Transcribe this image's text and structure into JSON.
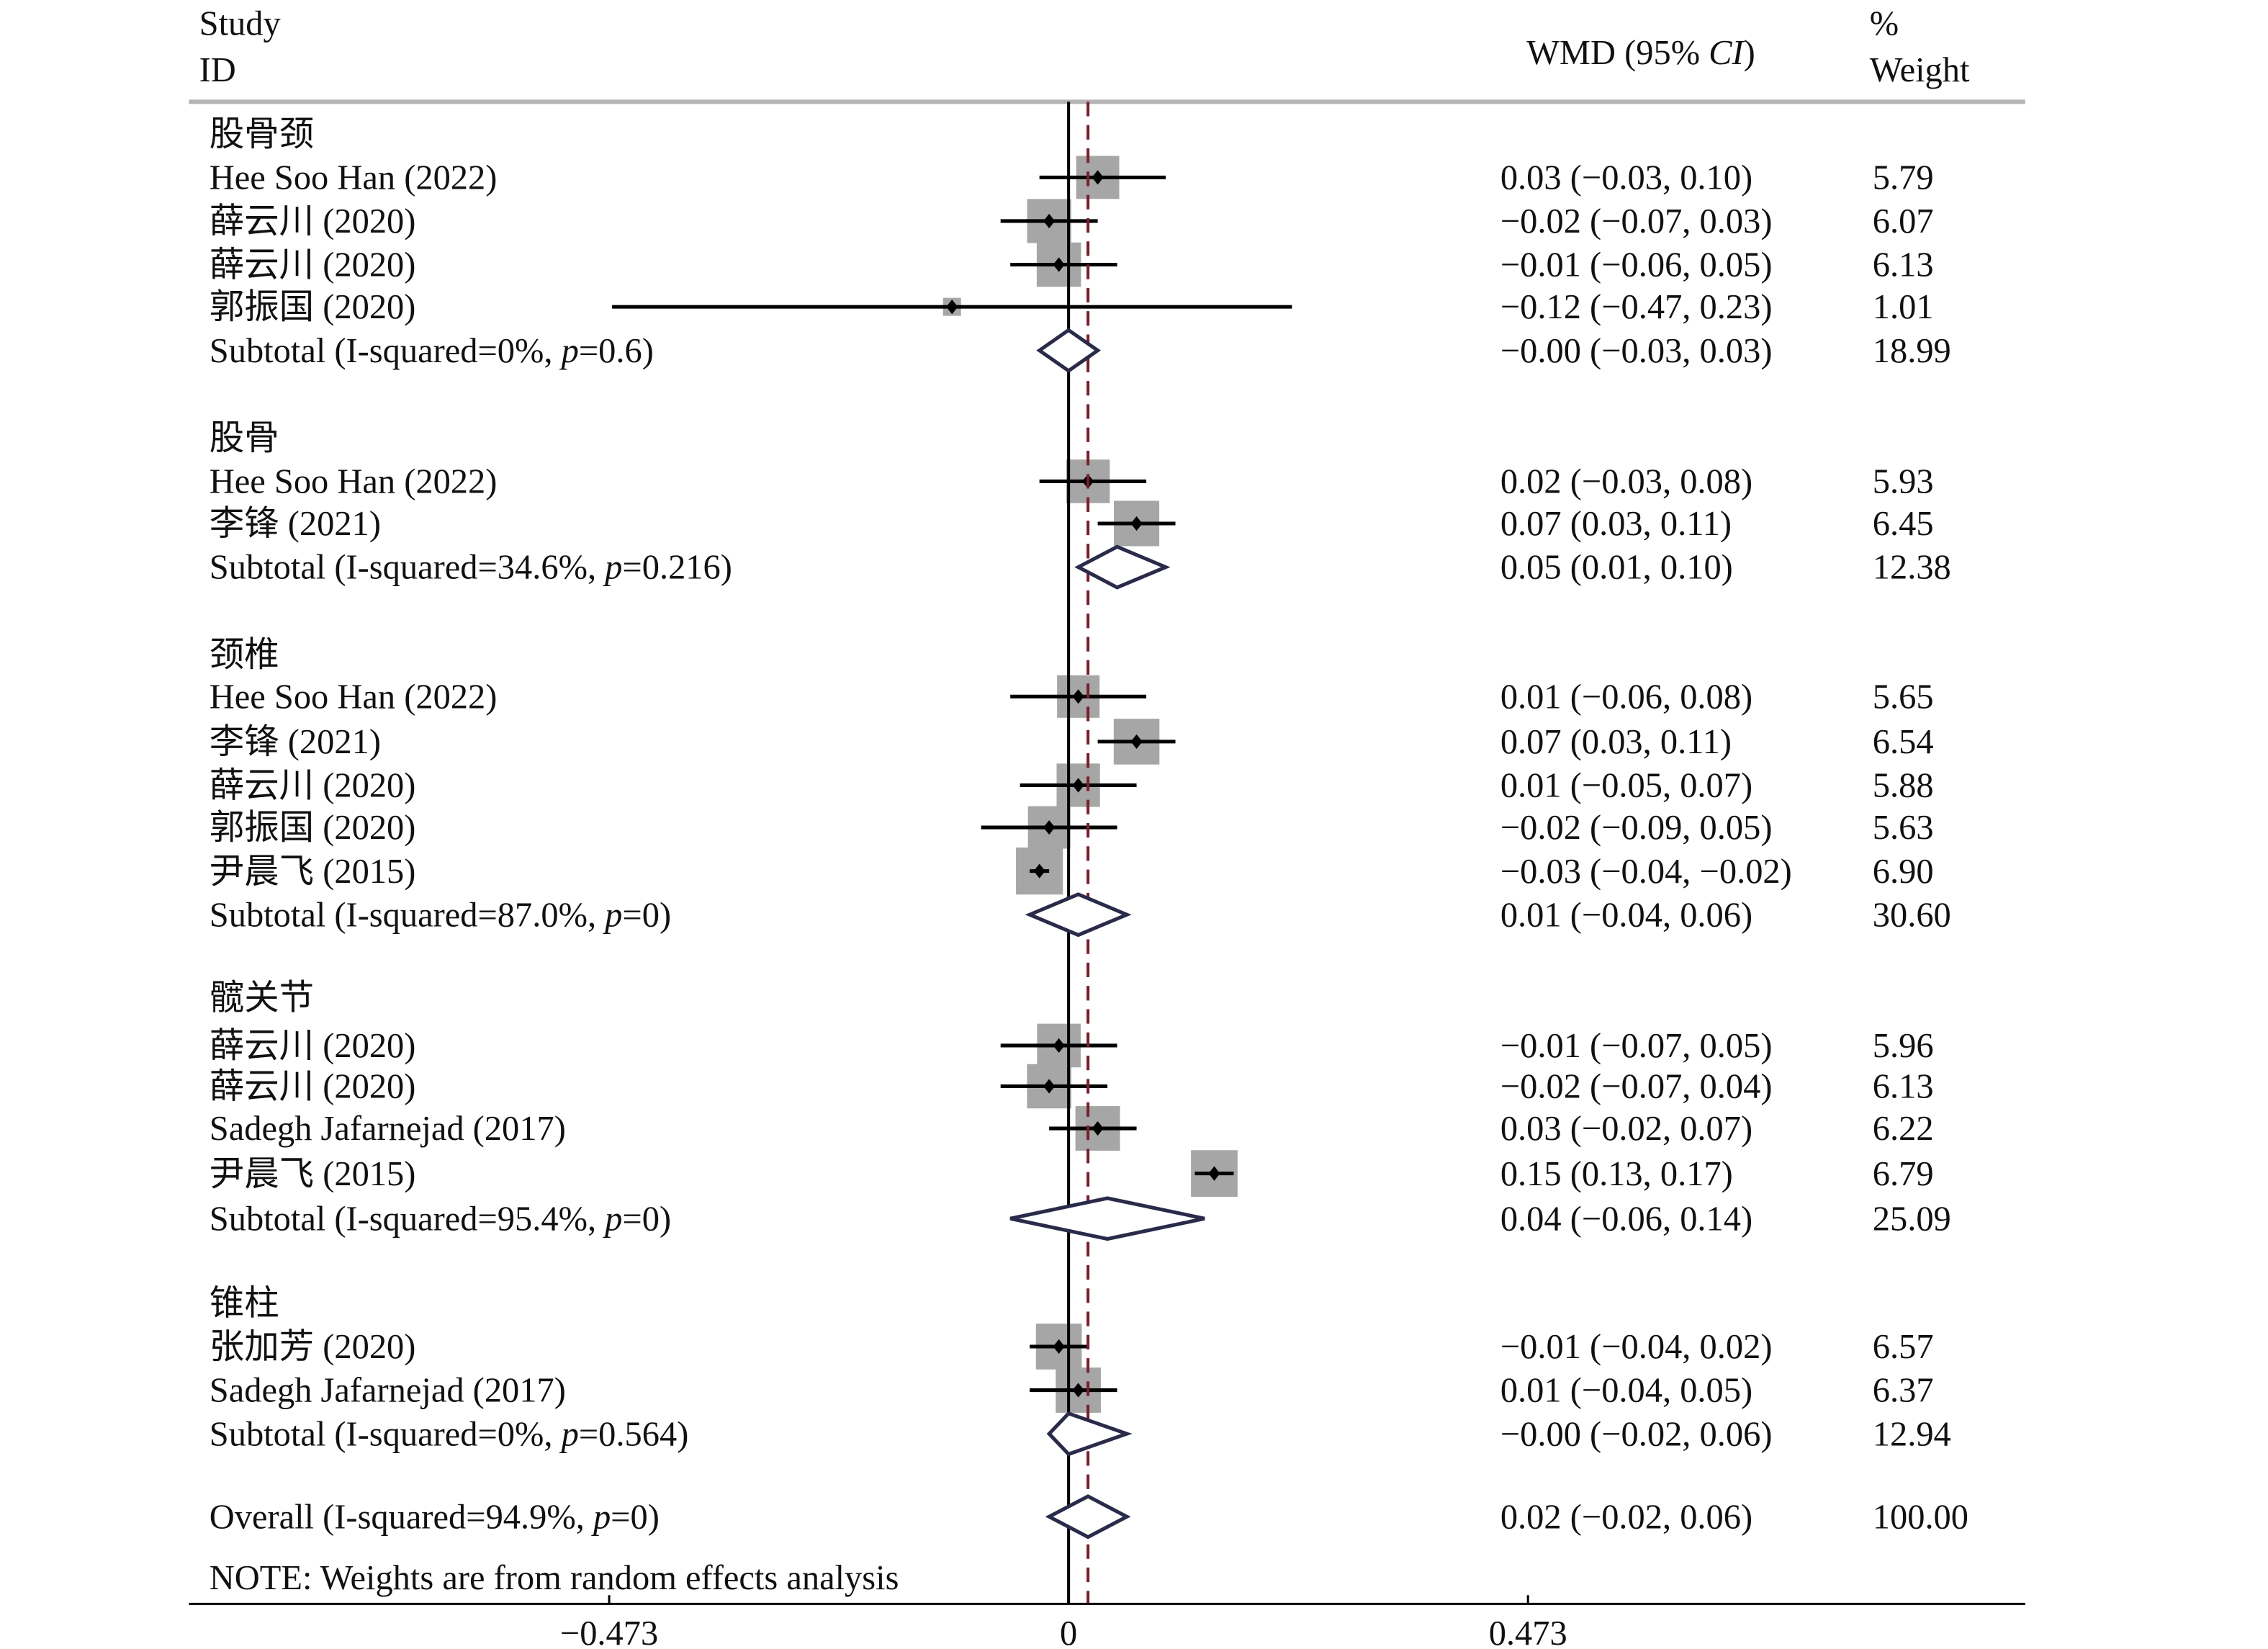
{
  "chart_data": {
    "type": "forest",
    "header": {
      "study_line1": "Study",
      "study_line2": "ID",
      "effect": "WMD (95% ",
      "effect_ci": "CI",
      "effect_close": ")",
      "weight_line1": "%",
      "weight_line2": "Weight"
    },
    "xlim": [
      -0.473,
      0.473
    ],
    "ticks": [
      {
        "value": -0.473,
        "label": "−0.473"
      },
      {
        "value": 0,
        "label": "0"
      },
      {
        "value": 0.473,
        "label": "0.473"
      }
    ],
    "null_line": 0,
    "overall_line": 0.02,
    "colors": {
      "box": "#a6a6a6",
      "diamond": "#2a2a4a",
      "overall_line": "#7a1f2b",
      "rule": "#b4b4b4"
    },
    "groups": [
      {
        "name": "股骨颈",
        "studies": [
          {
            "label": "Hee Soo Han (2022)",
            "es": 0.03,
            "lo": -0.03,
            "hi": 0.1,
            "ci_text": "0.03 (−0.03, 0.10)",
            "weight": "5.79"
          },
          {
            "label": "薛云川 (2020)",
            "es": -0.02,
            "lo": -0.07,
            "hi": 0.03,
            "ci_text": "−0.02 (−0.07, 0.03)",
            "weight": "6.07"
          },
          {
            "label": "薛云川 (2020)",
            "es": -0.01,
            "lo": -0.06,
            "hi": 0.05,
            "ci_text": "−0.01 (−0.06, 0.05)",
            "weight": "6.13"
          },
          {
            "label": "郭振国 (2020)",
            "es": -0.12,
            "lo": -0.47,
            "hi": 0.23,
            "ci_text": "−0.12 (−0.47, 0.23)",
            "weight": "1.01"
          }
        ],
        "subtotal": {
          "label_parts": [
            "Subtotal (I-squared=0%, ",
            "p",
            "=0.6)"
          ],
          "es": -0.0,
          "lo": -0.03,
          "hi": 0.03,
          "ci_text": "−0.00 (−0.03, 0.03)",
          "weight": "18.99"
        }
      },
      {
        "name": "股骨",
        "studies": [
          {
            "label": "Hee Soo Han (2022)",
            "es": 0.02,
            "lo": -0.03,
            "hi": 0.08,
            "ci_text": "0.02 (−0.03, 0.08)",
            "weight": "5.93"
          },
          {
            "label": "李锋 (2021)",
            "es": 0.07,
            "lo": 0.03,
            "hi": 0.11,
            "ci_text": "0.07 (0.03, 0.11)",
            "weight": "6.45"
          }
        ],
        "subtotal": {
          "label_parts": [
            "Subtotal (I-squared=34.6%, ",
            "p",
            "=0.216)"
          ],
          "es": 0.05,
          "lo": 0.01,
          "hi": 0.1,
          "ci_text": "0.05 (0.01, 0.10)",
          "weight": "12.38"
        }
      },
      {
        "name": "颈椎",
        "studies": [
          {
            "label": "Hee Soo Han (2022)",
            "es": 0.01,
            "lo": -0.06,
            "hi": 0.08,
            "ci_text": "0.01 (−0.06, 0.08)",
            "weight": "5.65"
          },
          {
            "label": "李锋 (2021)",
            "es": 0.07,
            "lo": 0.03,
            "hi": 0.11,
            "ci_text": "0.07 (0.03, 0.11)",
            "weight": "6.54"
          },
          {
            "label": "薛云川 (2020)",
            "es": 0.01,
            "lo": -0.05,
            "hi": 0.07,
            "ci_text": "0.01 (−0.05, 0.07)",
            "weight": "5.88"
          },
          {
            "label": "郭振国 (2020)",
            "es": -0.02,
            "lo": -0.09,
            "hi": 0.05,
            "ci_text": "−0.02 (−0.09, 0.05)",
            "weight": "5.63"
          },
          {
            "label": "尹晨飞 (2015)",
            "es": -0.03,
            "lo": -0.04,
            "hi": -0.02,
            "ci_text": "−0.03 (−0.04, −0.02)",
            "weight": "6.90"
          }
        ],
        "subtotal": {
          "label_parts": [
            "Subtotal (I-squared=87.0%, ",
            "p",
            "=0)"
          ],
          "es": 0.01,
          "lo": -0.04,
          "hi": 0.06,
          "ci_text": "0.01 (−0.04, 0.06)",
          "weight": "30.60"
        }
      },
      {
        "name": "髋关节",
        "studies": [
          {
            "label": "薛云川 (2020)",
            "es": -0.01,
            "lo": -0.07,
            "hi": 0.05,
            "ci_text": "−0.01 (−0.07, 0.05)",
            "weight": "5.96"
          },
          {
            "label": "薛云川 (2020)",
            "es": -0.02,
            "lo": -0.07,
            "hi": 0.04,
            "ci_text": "−0.02 (−0.07, 0.04)",
            "weight": "6.13"
          },
          {
            "label": "Sadegh Jafarnejad (2017)",
            "es": 0.03,
            "lo": -0.02,
            "hi": 0.07,
            "ci_text": "0.03 (−0.02, 0.07)",
            "weight": "6.22"
          },
          {
            "label": "尹晨飞 (2015)",
            "es": 0.15,
            "lo": 0.13,
            "hi": 0.17,
            "ci_text": "0.15 (0.13, 0.17)",
            "weight": "6.79"
          }
        ],
        "subtotal": {
          "label_parts": [
            "Subtotal (I-squared=95.4%, ",
            "p",
            "=0)"
          ],
          "es": 0.04,
          "lo": -0.06,
          "hi": 0.14,
          "ci_text": "0.04 (−0.06, 0.14)",
          "weight": "25.09"
        }
      },
      {
        "name": "锥柱",
        "studies": [
          {
            "label": "张加芳 (2020)",
            "es": -0.01,
            "lo": -0.04,
            "hi": 0.02,
            "ci_text": "−0.01 (−0.04, 0.02)",
            "weight": "6.57"
          },
          {
            "label": "Sadegh Jafarnejad (2017)",
            "es": 0.01,
            "lo": -0.04,
            "hi": 0.05,
            "ci_text": "0.01 (−0.04, 0.05)",
            "weight": "6.37"
          }
        ],
        "subtotal": {
          "label_parts": [
            "Subtotal (I-squared=0%, ",
            "p",
            "=0.564)"
          ],
          "es": -0.0,
          "lo": -0.02,
          "hi": 0.06,
          "ci_text": "−0.00 (−0.02, 0.06)",
          "weight": "12.94"
        }
      }
    ],
    "overall": {
      "label_parts": [
        "Overall (I-squared=94.9%, ",
        "p",
        "=0)"
      ],
      "es": 0.02,
      "lo": -0.02,
      "hi": 0.06,
      "ci_text": "0.02 (−0.02, 0.06)",
      "weight": "100.00"
    },
    "note": "NOTE: Weights are from random effects analysis"
  }
}
